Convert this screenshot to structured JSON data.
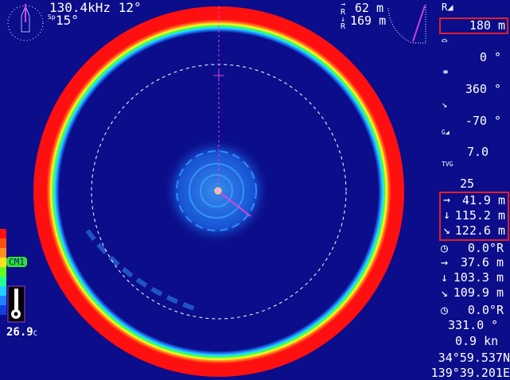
{
  "header": {
    "frequency": "130.4kHz",
    "tilt": "12°",
    "speed_label": "Sp",
    "beam": "15°"
  },
  "range_readout": {
    "horizontal": "62 m",
    "vertical": "169 m"
  },
  "sidebar": {
    "range": "180 m",
    "bearing": "0 °",
    "sector": "360 °",
    "tilt": "-70 °",
    "gain_label": "G",
    "gain": "7.0",
    "tvg_label": "TVG",
    "tvg": "25",
    "cursor_group": [
      {
        "icon": "arrow-right-icon",
        "glyph": "→",
        "value": "41.9 m"
      },
      {
        "icon": "arrow-down-icon",
        "glyph": "↓",
        "value": "115.2 m"
      },
      {
        "icon": "arrow-diagonal-icon",
        "glyph": "↘",
        "value": "122.6 m"
      }
    ],
    "cursor_bearing": "0.0°R",
    "marker_group": [
      {
        "icon": "arrow-right-icon",
        "glyph": "→",
        "value": "37.6 m"
      },
      {
        "icon": "arrow-down-icon",
        "glyph": "↓",
        "value": "103.3 m"
      },
      {
        "icon": "arrow-diagonal-icon",
        "glyph": "↘",
        "value": "109.9 m"
      }
    ],
    "marker_bearing": "0.0°R",
    "heading": "331.0 °",
    "ship_speed": "0.9 kn",
    "latitude": "34°59.537N",
    "longitude": "139°39.201E"
  },
  "left": {
    "current_label": "CM1",
    "temperature": "26.9",
    "temperature_unit": "C"
  },
  "colors": {
    "background": "#0b0d8a",
    "highlight_box": "#e0202a",
    "bearing_line": "#e040e0"
  }
}
